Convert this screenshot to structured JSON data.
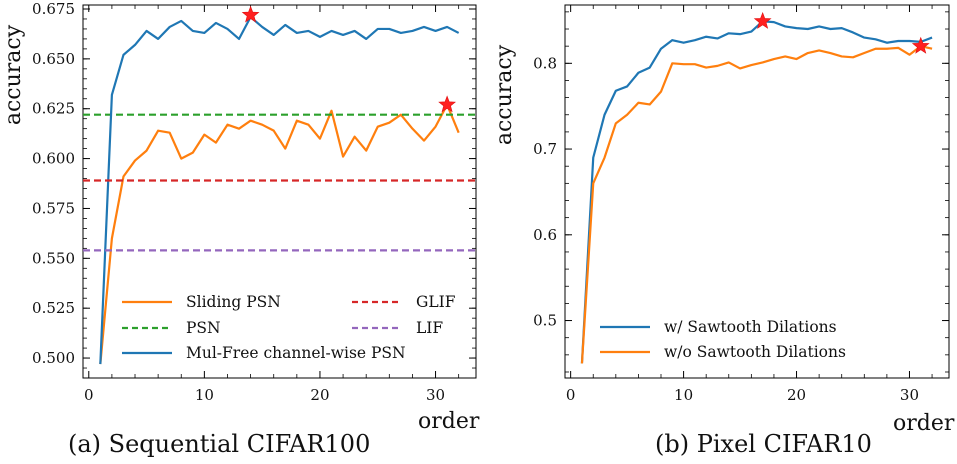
{
  "chart_data": [
    {
      "type": "line",
      "caption": "(a) Sequential CIFAR100",
      "xlabel": "order",
      "ylabel": "accuracy",
      "xlim": [
        -0.5,
        33.5
      ],
      "ylim": [
        0.49,
        0.677
      ],
      "xticks": [
        0,
        10,
        20,
        30
      ],
      "yticks": [
        0.5,
        0.525,
        0.55,
        0.575,
        0.6,
        0.625,
        0.65,
        0.675
      ],
      "ytick_labels": [
        "0.500",
        "0.525",
        "0.550",
        "0.575",
        "0.600",
        "0.625",
        "0.650",
        "0.675"
      ],
      "legend_position": "lower-right",
      "series": [
        {
          "name": "Sliding PSN",
          "color": "#ff7f0e",
          "style": "solid",
          "x": [
            1,
            2,
            3,
            4,
            5,
            6,
            7,
            8,
            9,
            10,
            11,
            12,
            13,
            14,
            15,
            16,
            17,
            18,
            19,
            20,
            21,
            22,
            23,
            24,
            25,
            26,
            27,
            28,
            29,
            30,
            31,
            32
          ],
          "y": [
            0.497,
            0.56,
            0.591,
            0.599,
            0.604,
            0.614,
            0.613,
            0.6,
            0.603,
            0.612,
            0.608,
            0.617,
            0.615,
            0.619,
            0.617,
            0.614,
            0.605,
            0.619,
            0.617,
            0.61,
            0.624,
            0.601,
            0.611,
            0.604,
            0.616,
            0.618,
            0.622,
            0.615,
            0.609,
            0.616,
            0.627,
            0.613
          ]
        },
        {
          "name": "PSN",
          "color": "#2ca02c",
          "style": "dashed",
          "x": [
            -0.5,
            33.5
          ],
          "y": [
            0.622,
            0.622
          ]
        },
        {
          "name": "Mul-Free channel-wise PSN",
          "color": "#1f77b4",
          "style": "solid",
          "x": [
            1,
            2,
            3,
            4,
            5,
            6,
            7,
            8,
            9,
            10,
            11,
            12,
            13,
            14,
            15,
            16,
            17,
            18,
            19,
            20,
            21,
            22,
            23,
            24,
            25,
            26,
            27,
            28,
            29,
            30,
            31,
            32
          ],
          "y": [
            0.497,
            0.632,
            0.652,
            0.657,
            0.664,
            0.66,
            0.666,
            0.669,
            0.664,
            0.663,
            0.668,
            0.665,
            0.66,
            0.671,
            0.666,
            0.662,
            0.667,
            0.663,
            0.664,
            0.661,
            0.664,
            0.662,
            0.664,
            0.66,
            0.665,
            0.665,
            0.663,
            0.664,
            0.666,
            0.664,
            0.666,
            0.663
          ]
        },
        {
          "name": "GLIF",
          "color": "#d62728",
          "style": "dashed",
          "x": [
            -0.5,
            33.5
          ],
          "y": [
            0.589,
            0.589
          ]
        },
        {
          "name": "LIF",
          "color": "#9467bd",
          "style": "dashed",
          "x": [
            -0.5,
            33.5
          ],
          "y": [
            0.554,
            0.554
          ]
        }
      ],
      "markers": [
        {
          "x": 14,
          "y": 0.672,
          "color": "#ff2020"
        },
        {
          "x": 31,
          "y": 0.627,
          "color": "#ff2020"
        }
      ]
    },
    {
      "type": "line",
      "caption": "(b) Pixel CIFAR10",
      "xlabel": "order",
      "ylabel": "accuracy",
      "xlim": [
        -0.5,
        33.5
      ],
      "ylim": [
        0.433,
        0.868
      ],
      "xticks": [
        0,
        10,
        20,
        30
      ],
      "yticks": [
        0.5,
        0.6,
        0.7,
        0.8
      ],
      "ytick_labels": [
        "0.5",
        "0.6",
        "0.7",
        "0.8"
      ],
      "legend_position": "lower-left",
      "series": [
        {
          "name": "w/ Sawtooth Dilations",
          "color": "#1f77b4",
          "style": "solid",
          "x": [
            1,
            2,
            3,
            4,
            5,
            6,
            7,
            8,
            9,
            10,
            11,
            12,
            13,
            14,
            15,
            16,
            17,
            18,
            19,
            20,
            21,
            22,
            23,
            24,
            25,
            26,
            27,
            28,
            29,
            30,
            31,
            32
          ],
          "y": [
            0.45,
            0.69,
            0.74,
            0.768,
            0.773,
            0.789,
            0.795,
            0.817,
            0.827,
            0.824,
            0.827,
            0.831,
            0.829,
            0.835,
            0.834,
            0.837,
            0.849,
            0.848,
            0.843,
            0.841,
            0.84,
            0.843,
            0.84,
            0.841,
            0.836,
            0.83,
            0.828,
            0.824,
            0.826,
            0.826,
            0.825,
            0.83
          ]
        },
        {
          "name": "w/o Sawtooth Dilations",
          "color": "#ff7f0e",
          "style": "solid",
          "x": [
            1,
            2,
            3,
            4,
            5,
            6,
            7,
            8,
            9,
            10,
            11,
            12,
            13,
            14,
            15,
            16,
            17,
            18,
            19,
            20,
            21,
            22,
            23,
            24,
            25,
            26,
            27,
            28,
            29,
            30,
            31,
            32
          ],
          "y": [
            0.45,
            0.66,
            0.69,
            0.73,
            0.74,
            0.754,
            0.752,
            0.767,
            0.8,
            0.799,
            0.799,
            0.795,
            0.797,
            0.801,
            0.794,
            0.798,
            0.801,
            0.805,
            0.808,
            0.805,
            0.812,
            0.815,
            0.812,
            0.808,
            0.807,
            0.812,
            0.817,
            0.817,
            0.818,
            0.81,
            0.82,
            0.817
          ]
        }
      ],
      "markers": [
        {
          "x": 17,
          "y": 0.849,
          "color": "#ff2020"
        },
        {
          "x": 31,
          "y": 0.82,
          "color": "#ff2020"
        }
      ]
    }
  ]
}
